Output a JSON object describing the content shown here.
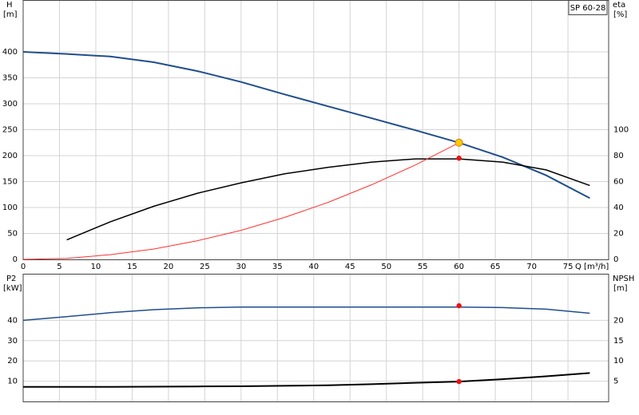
{
  "chart_data": [
    {
      "type": "line",
      "title": "SP 60-28",
      "x_label": "Q [m³/h]",
      "y_label": "H",
      "y_unit": "[m]",
      "y2_label": "eta",
      "y2_unit": "[%]",
      "x": [
        0,
        6,
        12,
        18,
        24,
        30,
        36,
        42,
        48,
        54,
        60,
        66,
        72,
        78
      ],
      "xlim": [
        0,
        80.6
      ],
      "xticks": [
        0,
        5,
        10,
        15,
        20,
        25,
        30,
        35,
        40,
        45,
        50,
        55,
        60,
        65,
        70,
        75
      ],
      "ylim": [
        0,
        500
      ],
      "yticks": [
        0,
        50,
        100,
        150,
        200,
        250,
        300,
        350,
        400
      ],
      "y2lim": [
        0,
        200
      ],
      "y2ticks": [
        0,
        20,
        40,
        60,
        80,
        100
      ],
      "grid": true,
      "series": [
        {
          "color": "#1f4e8c",
          "width": 2,
          "axis": "y",
          "values": [
            400,
            396,
            391,
            380,
            363,
            342,
            318,
            295,
            272,
            249,
            225,
            197,
            162,
            118
          ]
        },
        {
          "color": "#000000",
          "width": 1.5,
          "axis": "y2",
          "values": [
            null,
            15,
            29,
            41,
            51,
            59,
            66,
            71,
            75,
            77.5,
            77.5,
            75,
            69,
            57
          ]
        },
        {
          "color": "#ff3030",
          "width": 1,
          "axis": "y",
          "values": [
            0,
            2,
            9,
            20,
            36,
            56,
            81,
            110,
            144,
            182,
            225,
            null,
            null,
            null
          ]
        }
      ],
      "points": [
        {
          "x": 60,
          "y": 225,
          "axis": "y",
          "color": "#ffcc00"
        },
        {
          "x": 60,
          "y": 78,
          "axis": "y2",
          "color": "#ee1111"
        }
      ]
    },
    {
      "type": "line",
      "y_label": "P2",
      "y_unit": "[kW]",
      "y2_label": "NPSH",
      "y2_unit": "[m]",
      "x": [
        0,
        6,
        12,
        18,
        24,
        30,
        36,
        42,
        48,
        54,
        60,
        66,
        72,
        78
      ],
      "xlim": [
        0,
        80.6
      ],
      "ylim": [
        0,
        63
      ],
      "yticks": [
        10,
        20,
        30,
        40
      ],
      "y2lim": [
        0,
        31.5
      ],
      "y2ticks": [
        5,
        10,
        15,
        20
      ],
      "grid": true,
      "series": [
        {
          "color": "#1f4e8c",
          "width": 1.5,
          "axis": "y",
          "values": [
            40,
            41.8,
            43.8,
            45.3,
            46.2,
            46.6,
            46.6,
            46.6,
            46.6,
            46.6,
            46.6,
            46.3,
            45.5,
            43.5
          ]
        },
        {
          "color": "#000000",
          "width": 2,
          "axis": "y2",
          "values": [
            3.6,
            3.6,
            3.6,
            3.65,
            3.7,
            3.75,
            3.85,
            4.0,
            4.25,
            4.6,
            4.9,
            5.5,
            6.2,
            7.0
          ]
        }
      ],
      "points": [
        {
          "x": 60,
          "y": 47.2,
          "axis": "y",
          "color": "#ee1111"
        },
        {
          "x": 60,
          "y": 4.9,
          "axis": "y2",
          "color": "#ee1111"
        }
      ]
    }
  ]
}
